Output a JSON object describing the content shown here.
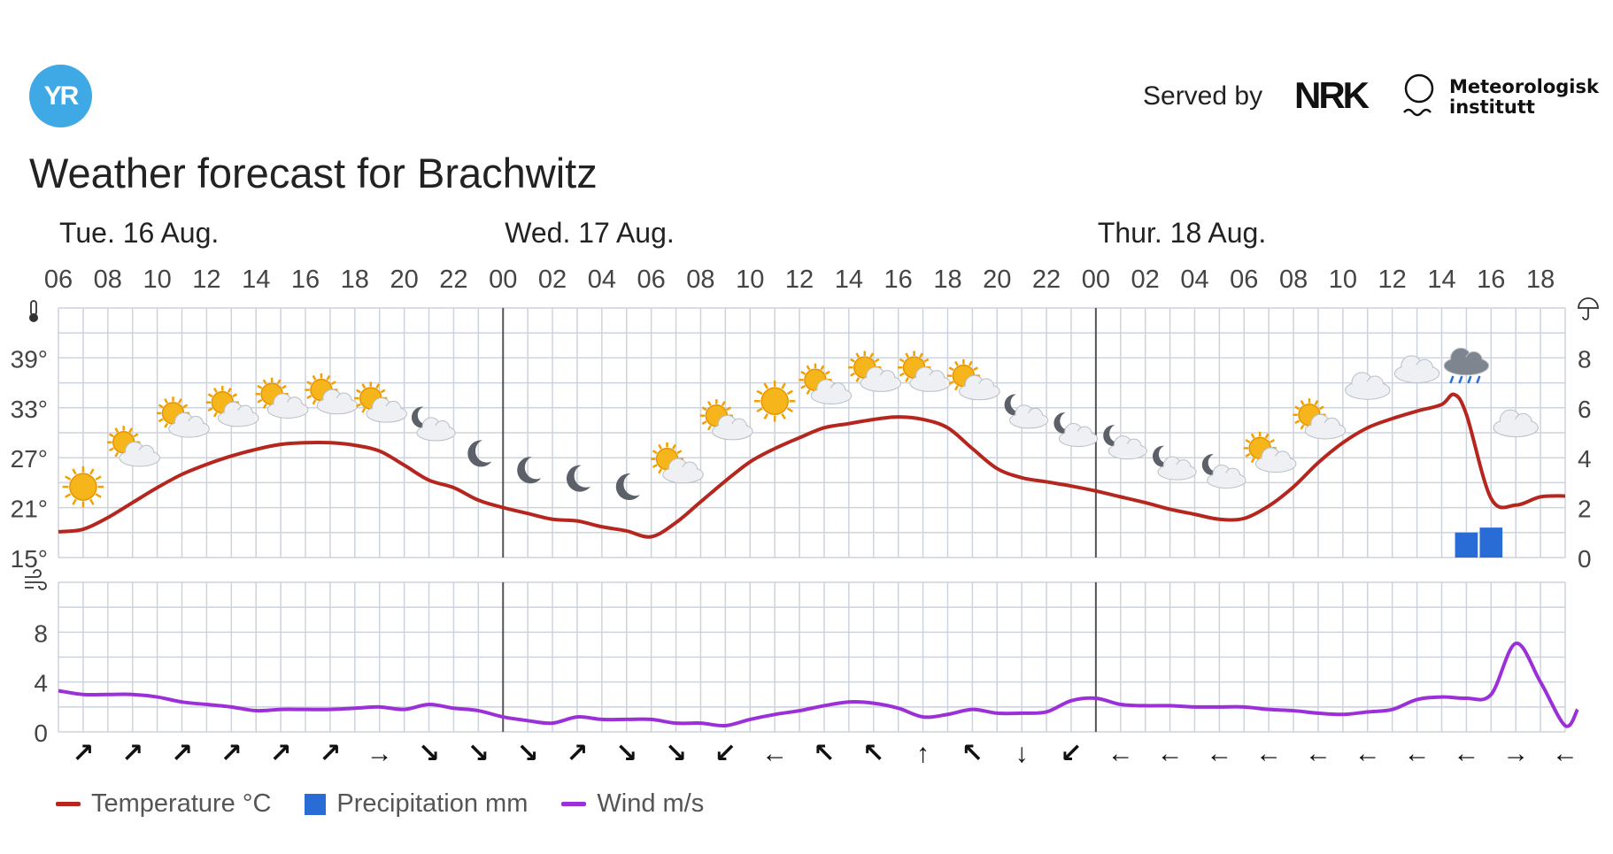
{
  "header": {
    "logo_text": "YR",
    "served_by": "Served by",
    "nrk_logo": "NRK",
    "met_line1": "Meteorologisk",
    "met_line2": "institutt",
    "title": "Weather forecast for Brachwitz"
  },
  "legend": {
    "temperature": "Temperature °C",
    "precipitation": "Precipitation mm",
    "wind": "Wind m/s"
  },
  "colors": {
    "temperature": "#b5261e",
    "precipitation": "#2a6cd6",
    "wind": "#9b30d9",
    "grid": "#cdd3dc",
    "day_divider": "#555555"
  },
  "icons": {
    "temperature_axis": "thermometer-icon",
    "precipitation_axis": "umbrella-icon",
    "wind_axis": "wind-icon"
  },
  "chart_data": {
    "type": "line",
    "days": [
      {
        "label": "Tue. 16 Aug.",
        "start_hour": 0
      },
      {
        "label": "Wed. 17 Aug.",
        "start_hour": 18
      },
      {
        "label": "Thur. 18 Aug.",
        "start_hour": 42
      }
    ],
    "x_tick_labels": [
      "06",
      "08",
      "10",
      "12",
      "14",
      "16",
      "18",
      "20",
      "22",
      "00",
      "02",
      "04",
      "06",
      "08",
      "10",
      "12",
      "14",
      "16",
      "18",
      "20",
      "22",
      "00",
      "02",
      "04",
      "06",
      "08",
      "10",
      "12",
      "14",
      "16",
      "18"
    ],
    "x_tick_hours": [
      0,
      2,
      4,
      6,
      8,
      10,
      12,
      14,
      16,
      18,
      20,
      22,
      24,
      26,
      28,
      30,
      32,
      34,
      36,
      38,
      40,
      42,
      44,
      46,
      48,
      50,
      52,
      54,
      56,
      58,
      60
    ],
    "x_range_hours": [
      0,
      61
    ],
    "temperature": {
      "name": "Temperature °C",
      "y_ticks": [
        15,
        21,
        27,
        33,
        39
      ],
      "y_tick_labels": [
        "15°",
        "21°",
        "27°",
        "33°",
        "39°"
      ],
      "ylim": [
        15,
        45
      ],
      "points": [
        [
          0,
          18.1
        ],
        [
          1,
          18.4
        ],
        [
          2,
          19.8
        ],
        [
          3,
          21.6
        ],
        [
          4,
          23.4
        ],
        [
          5,
          25.0
        ],
        [
          6,
          26.2
        ],
        [
          7,
          27.2
        ],
        [
          8,
          28.0
        ],
        [
          9,
          28.6
        ],
        [
          10,
          28.8
        ],
        [
          11,
          28.8
        ],
        [
          12,
          28.5
        ],
        [
          13,
          27.8
        ],
        [
          14,
          26.1
        ],
        [
          15,
          24.3
        ],
        [
          16,
          23.4
        ],
        [
          17,
          21.9
        ],
        [
          18,
          21.0
        ],
        [
          19,
          20.3
        ],
        [
          20,
          19.6
        ],
        [
          21,
          19.4
        ],
        [
          22,
          18.7
        ],
        [
          23,
          18.2
        ],
        [
          24,
          17.5
        ],
        [
          25,
          19.2
        ],
        [
          26,
          21.7
        ],
        [
          27,
          24.2
        ],
        [
          28,
          26.5
        ],
        [
          29,
          28.1
        ],
        [
          30,
          29.4
        ],
        [
          31,
          30.6
        ],
        [
          32,
          31.1
        ],
        [
          33,
          31.6
        ],
        [
          34,
          31.9
        ],
        [
          35,
          31.6
        ],
        [
          36,
          30.6
        ],
        [
          37,
          28.1
        ],
        [
          38,
          25.7
        ],
        [
          39,
          24.6
        ],
        [
          40,
          24.1
        ],
        [
          41,
          23.6
        ],
        [
          42,
          23.0
        ],
        [
          43,
          22.3
        ],
        [
          44,
          21.6
        ],
        [
          45,
          20.8
        ],
        [
          46,
          20.2
        ],
        [
          47,
          19.6
        ],
        [
          48,
          19.7
        ],
        [
          49,
          21.2
        ],
        [
          50,
          23.5
        ],
        [
          51,
          26.4
        ],
        [
          52,
          28.8
        ],
        [
          53,
          30.6
        ],
        [
          54,
          31.7
        ],
        [
          55,
          32.6
        ],
        [
          56,
          33.4
        ],
        [
          56.5,
          34.6
        ],
        [
          57,
          32.2
        ],
        [
          58,
          22.1
        ],
        [
          59,
          21.3
        ],
        [
          60,
          22.3
        ],
        [
          61,
          22.4
        ]
      ]
    },
    "precipitation": {
      "name": "Precipitation mm",
      "y_ticks": [
        0,
        2,
        4,
        6,
        8
      ],
      "y_tick_labels": [
        "0",
        "2",
        "4",
        "6",
        "8"
      ],
      "ylim": [
        0,
        10
      ],
      "bars": [
        {
          "hour": 57,
          "value": 1.0
        },
        {
          "hour": 58,
          "value": 1.2
        }
      ]
    },
    "wind": {
      "name": "Wind m/s",
      "y_ticks": [
        0,
        4,
        8
      ],
      "y_tick_labels": [
        "0",
        "4",
        "8"
      ],
      "ylim": [
        0,
        12
      ],
      "points": [
        [
          0,
          3.3
        ],
        [
          1,
          3.0
        ],
        [
          2,
          3.0
        ],
        [
          3,
          3.0
        ],
        [
          4,
          2.8
        ],
        [
          5,
          2.4
        ],
        [
          6,
          2.2
        ],
        [
          7,
          2.0
        ],
        [
          8,
          1.7
        ],
        [
          9,
          1.8
        ],
        [
          10,
          1.8
        ],
        [
          11,
          1.8
        ],
        [
          12,
          1.9
        ],
        [
          13,
          2.0
        ],
        [
          14,
          1.8
        ],
        [
          15,
          2.2
        ],
        [
          16,
          1.9
        ],
        [
          17,
          1.7
        ],
        [
          18,
          1.2
        ],
        [
          19,
          0.9
        ],
        [
          20,
          0.7
        ],
        [
          21,
          1.2
        ],
        [
          22,
          1.0
        ],
        [
          23,
          1.0
        ],
        [
          24,
          1.0
        ],
        [
          25,
          0.7
        ],
        [
          26,
          0.7
        ],
        [
          27,
          0.5
        ],
        [
          28,
          1.0
        ],
        [
          29,
          1.4
        ],
        [
          30,
          1.7
        ],
        [
          31,
          2.1
        ],
        [
          32,
          2.4
        ],
        [
          33,
          2.3
        ],
        [
          34,
          1.9
        ],
        [
          35,
          1.2
        ],
        [
          36,
          1.4
        ],
        [
          37,
          1.8
        ],
        [
          38,
          1.5
        ],
        [
          39,
          1.5
        ],
        [
          40,
          1.6
        ],
        [
          41,
          2.5
        ],
        [
          42,
          2.7
        ],
        [
          43,
          2.2
        ],
        [
          44,
          2.1
        ],
        [
          45,
          2.1
        ],
        [
          46,
          2.0
        ],
        [
          47,
          2.0
        ],
        [
          48,
          2.0
        ],
        [
          49,
          1.8
        ],
        [
          50,
          1.7
        ],
        [
          51,
          1.5
        ],
        [
          52,
          1.4
        ],
        [
          53,
          1.6
        ],
        [
          54,
          1.8
        ],
        [
          55,
          2.6
        ],
        [
          56,
          2.8
        ],
        [
          57,
          2.7
        ],
        [
          58,
          3.0
        ],
        [
          59,
          7.1
        ],
        [
          60,
          4.0
        ],
        [
          61,
          0.5
        ],
        [
          61.5,
          1.8
        ]
      ]
    },
    "weather_symbols": [
      {
        "hour": 1,
        "icon": "sun-icon",
        "y": 23.5
      },
      {
        "hour": 3,
        "icon": "partly-cloudy-day-icon",
        "y": 28.0
      },
      {
        "hour": 5,
        "icon": "partly-cloudy-day-icon",
        "y": 31.5
      },
      {
        "hour": 7,
        "icon": "partly-cloudy-day-icon",
        "y": 32.8
      },
      {
        "hour": 9,
        "icon": "partly-cloudy-day-icon",
        "y": 33.8
      },
      {
        "hour": 11,
        "icon": "partly-cloudy-day-icon",
        "y": 34.3
      },
      {
        "hour": 13,
        "icon": "partly-cloudy-day-icon",
        "y": 33.3
      },
      {
        "hour": 15,
        "icon": "partly-cloudy-night-icon",
        "y": 31.0
      },
      {
        "hour": 17,
        "icon": "moon-icon",
        "y": 27.5
      },
      {
        "hour": 19,
        "icon": "moon-icon",
        "y": 25.5
      },
      {
        "hour": 21,
        "icon": "moon-icon",
        "y": 24.5
      },
      {
        "hour": 23,
        "icon": "moon-icon",
        "y": 23.5
      },
      {
        "hour": 25,
        "icon": "partly-cloudy-day-icon",
        "y": 26.0
      },
      {
        "hour": 27,
        "icon": "partly-cloudy-day-icon",
        "y": 31.2
      },
      {
        "hour": 29,
        "icon": "sun-icon",
        "y": 33.8
      },
      {
        "hour": 31,
        "icon": "partly-cloudy-day-icon",
        "y": 35.5
      },
      {
        "hour": 33,
        "icon": "partly-cloudy-day-icon",
        "y": 37.0
      },
      {
        "hour": 35,
        "icon": "partly-cloudy-day-icon",
        "y": 37.0
      },
      {
        "hour": 37,
        "icon": "partly-cloudy-day-icon",
        "y": 36.0
      },
      {
        "hour": 39,
        "icon": "partly-cloudy-night-icon",
        "y": 32.5
      },
      {
        "hour": 41,
        "icon": "partly-cloudy-night-icon",
        "y": 30.3
      },
      {
        "hour": 43,
        "icon": "partly-cloudy-night-icon",
        "y": 28.8
      },
      {
        "hour": 45,
        "icon": "partly-cloudy-night-icon",
        "y": 26.3
      },
      {
        "hour": 47,
        "icon": "partly-cloudy-night-icon",
        "y": 25.3
      },
      {
        "hour": 49,
        "icon": "partly-cloudy-day-icon",
        "y": 27.3
      },
      {
        "hour": 51,
        "icon": "partly-cloudy-day-icon",
        "y": 31.3
      },
      {
        "hour": 53,
        "icon": "cloud-icon",
        "y": 35.8
      },
      {
        "hour": 55,
        "icon": "cloud-icon",
        "y": 37.8
      },
      {
        "hour": 57,
        "icon": "rain-cloud-icon",
        "y": 38.3
      },
      {
        "hour": 59,
        "icon": "cloud-icon",
        "y": 31.3
      }
    ],
    "wind_directions": [
      {
        "hour": 1,
        "arrow": "↗"
      },
      {
        "hour": 3,
        "arrow": "↗"
      },
      {
        "hour": 5,
        "arrow": "↗"
      },
      {
        "hour": 7,
        "arrow": "↗"
      },
      {
        "hour": 9,
        "arrow": "↗"
      },
      {
        "hour": 11,
        "arrow": "↗"
      },
      {
        "hour": 13,
        "arrow": "→"
      },
      {
        "hour": 15,
        "arrow": "↘"
      },
      {
        "hour": 17,
        "arrow": "↘"
      },
      {
        "hour": 19,
        "arrow": "↘"
      },
      {
        "hour": 21,
        "arrow": "↗"
      },
      {
        "hour": 23,
        "arrow": "↘"
      },
      {
        "hour": 25,
        "arrow": "↘"
      },
      {
        "hour": 27,
        "arrow": "↙"
      },
      {
        "hour": 29,
        "arrow": "←"
      },
      {
        "hour": 31,
        "arrow": "↖"
      },
      {
        "hour": 33,
        "arrow": "↖"
      },
      {
        "hour": 35,
        "arrow": "↑"
      },
      {
        "hour": 37,
        "arrow": "↖"
      },
      {
        "hour": 39,
        "arrow": "↓"
      },
      {
        "hour": 41,
        "arrow": "↙"
      },
      {
        "hour": 43,
        "arrow": "←"
      },
      {
        "hour": 45,
        "arrow": "←"
      },
      {
        "hour": 47,
        "arrow": "←"
      },
      {
        "hour": 49,
        "arrow": "←"
      },
      {
        "hour": 51,
        "arrow": "←"
      },
      {
        "hour": 53,
        "arrow": "←"
      },
      {
        "hour": 55,
        "arrow": "←"
      },
      {
        "hour": 57,
        "arrow": "←"
      },
      {
        "hour": 59,
        "arrow": "→"
      },
      {
        "hour": 61,
        "arrow": "←"
      }
    ]
  }
}
